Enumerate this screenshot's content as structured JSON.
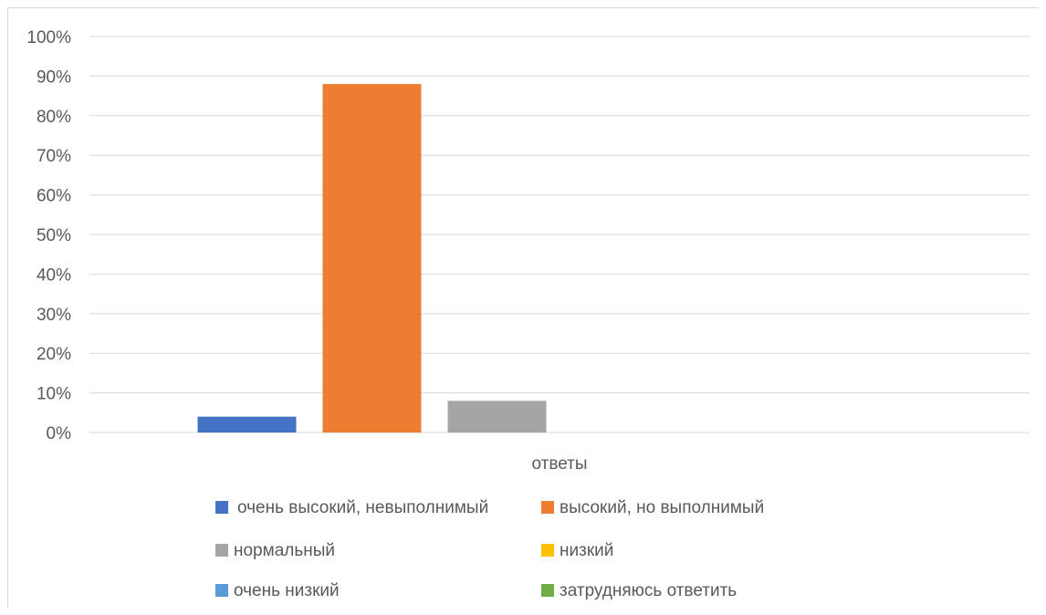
{
  "chart_data": {
    "type": "bar",
    "categories": [
      "ответы"
    ],
    "series": [
      {
        "name": "очень высокий, невыполнимый",
        "values": [
          4
        ],
        "color": "#4472c4"
      },
      {
        "name": "высокий, но выполнимый",
        "values": [
          88
        ],
        "color": "#ed7d31"
      },
      {
        "name": "нормальный",
        "values": [
          8
        ],
        "color": "#a5a5a5"
      },
      {
        "name": "низкий",
        "values": [
          0
        ],
        "color": "#ffc000"
      },
      {
        "name": "очень низкий",
        "values": [
          0
        ],
        "color": "#5b9bd5"
      },
      {
        "name": "затрудняюсь ответить",
        "values": [
          0
        ],
        "color": "#70ad47"
      }
    ],
    "y_ticks": [
      "0%",
      "10%",
      "20%",
      "30%",
      "40%",
      "50%",
      "60%",
      "70%",
      "80%",
      "90%",
      "100%"
    ],
    "ylim": [
      0,
      100
    ],
    "grid": true,
    "legend_position": "bottom"
  }
}
